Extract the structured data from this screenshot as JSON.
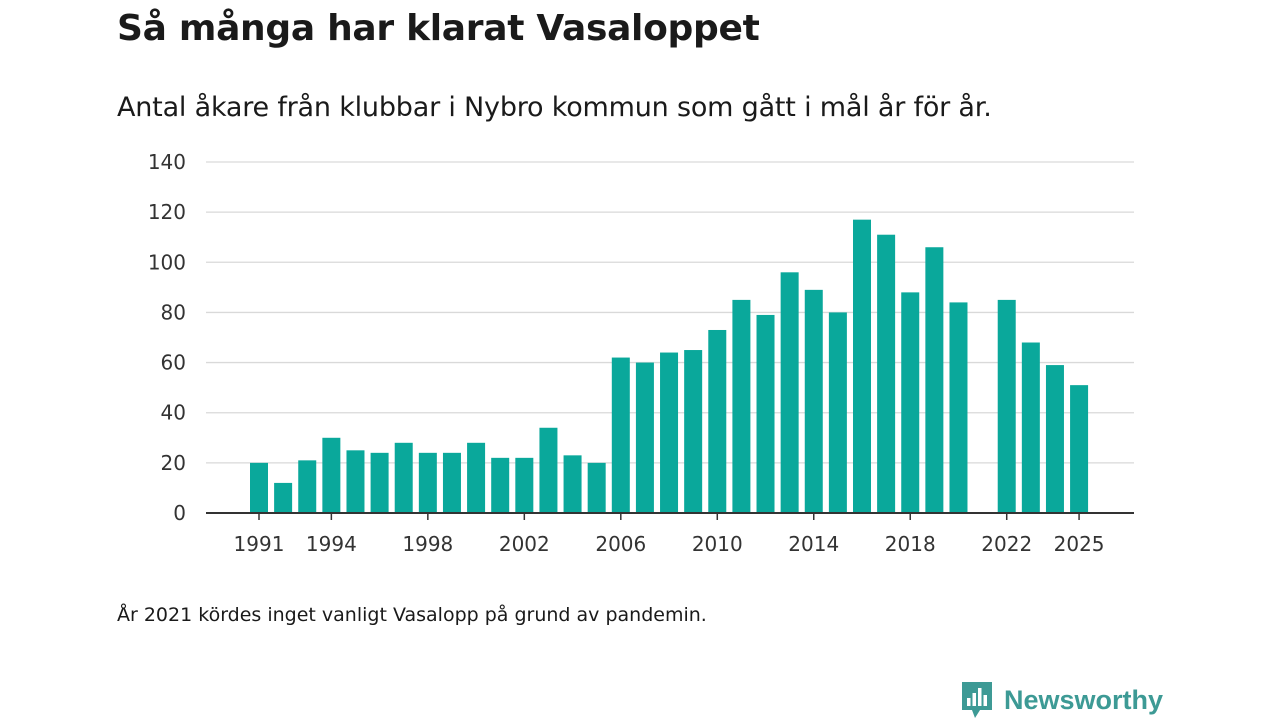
{
  "chart_data": {
    "type": "bar",
    "title": "Så många har klarat Vasaloppet",
    "subtitle": "Antal åkare från klubbar i Nybro kommun som gått i mål år för år.",
    "x": [
      1991,
      1992,
      1993,
      1994,
      1995,
      1996,
      1997,
      1998,
      1999,
      2000,
      2001,
      2002,
      2003,
      2004,
      2005,
      2006,
      2007,
      2008,
      2009,
      2010,
      2011,
      2012,
      2013,
      2014,
      2015,
      2016,
      2017,
      2018,
      2019,
      2020,
      2021,
      2022,
      2023,
      2024,
      2025
    ],
    "values": [
      20,
      12,
      21,
      30,
      25,
      24,
      28,
      24,
      24,
      28,
      22,
      22,
      34,
      23,
      20,
      62,
      60,
      64,
      65,
      73,
      85,
      79,
      96,
      89,
      80,
      117,
      111,
      88,
      106,
      84,
      null,
      85,
      68,
      59,
      51
    ],
    "x_tick_labels": [
      "1991",
      "1994",
      "1998",
      "2002",
      "2006",
      "2010",
      "2014",
      "2018",
      "2022",
      "2025"
    ],
    "y_ticks": [
      0,
      20,
      40,
      60,
      80,
      100,
      120,
      140
    ],
    "ylim": [
      0,
      140
    ],
    "xlabel": "",
    "ylabel": "",
    "grid": true,
    "bar_color": "#0aa89b",
    "gridline_color": "#d9d9d9",
    "axis_color": "#333333"
  },
  "note": "År 2021 kördes inget vanligt Vasalopp på grund av pandemin.",
  "brand": {
    "name": "Newsworthy",
    "icon": "chart-bubble-icon",
    "color": "#3d9a95"
  }
}
